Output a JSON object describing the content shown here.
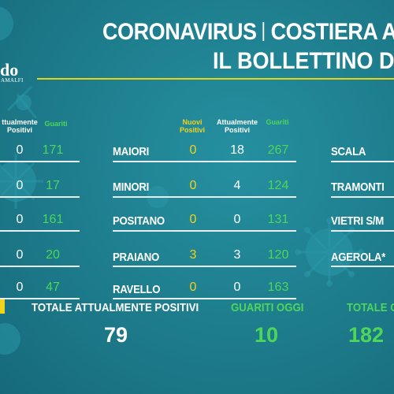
{
  "header": {
    "title_left": "CORONAVIRUS",
    "title_right": "COSTIERA A",
    "subtitle": "IL BOLLETTINO DI"
  },
  "logo": {
    "text": "do",
    "sub": "AMALFI"
  },
  "colors": {
    "background": "#1b7686",
    "accent_yellow": "#f2d31b",
    "accent_green": "#4ed65a",
    "rule_yellow": "#e9d50f"
  },
  "columns": {
    "left": {
      "current_label": "ttualmente Positivi",
      "recovered_label": "Guariti"
    },
    "middle": {
      "new_label": "Nuovi Positivi",
      "current_label": "Attualmente Positivi",
      "recovered_label": "Guariti"
    }
  },
  "left_rows": [
    {
      "current": "0",
      "recovered": "171"
    },
    {
      "current": "0",
      "recovered": "17"
    },
    {
      "current": "0",
      "recovered": "161"
    },
    {
      "current": "0",
      "recovered": "20"
    },
    {
      "current": "0",
      "recovered": "47"
    }
  ],
  "middle_rows": [
    {
      "town": "MAIORI",
      "new": "0",
      "current": "18",
      "recovered": "267"
    },
    {
      "town": "MINORI",
      "new": "0",
      "current": "4",
      "recovered": "124"
    },
    {
      "town": "POSITANO",
      "new": "0",
      "current": "0",
      "recovered": "131"
    },
    {
      "town": "PRAIANO",
      "new": "3",
      "current": "3",
      "recovered": "120"
    },
    {
      "town": "RAVELLO",
      "new": "0",
      "current": "0",
      "recovered": "163"
    }
  ],
  "right_rows": [
    {
      "town": "SCALA"
    },
    {
      "town": "TRAMONTI"
    },
    {
      "town": "VIETRI S/M"
    },
    {
      "town": "AGEROLA*"
    }
  ],
  "totals": {
    "current_label": "TOTALE ATTUALMENTE POSITIVI",
    "current_value": "79",
    "recovered_today_label": "GUARITI OGGI",
    "recovered_today_value": "10",
    "total_recovered_label": "TOTALE G",
    "total_recovered_value": "182"
  }
}
